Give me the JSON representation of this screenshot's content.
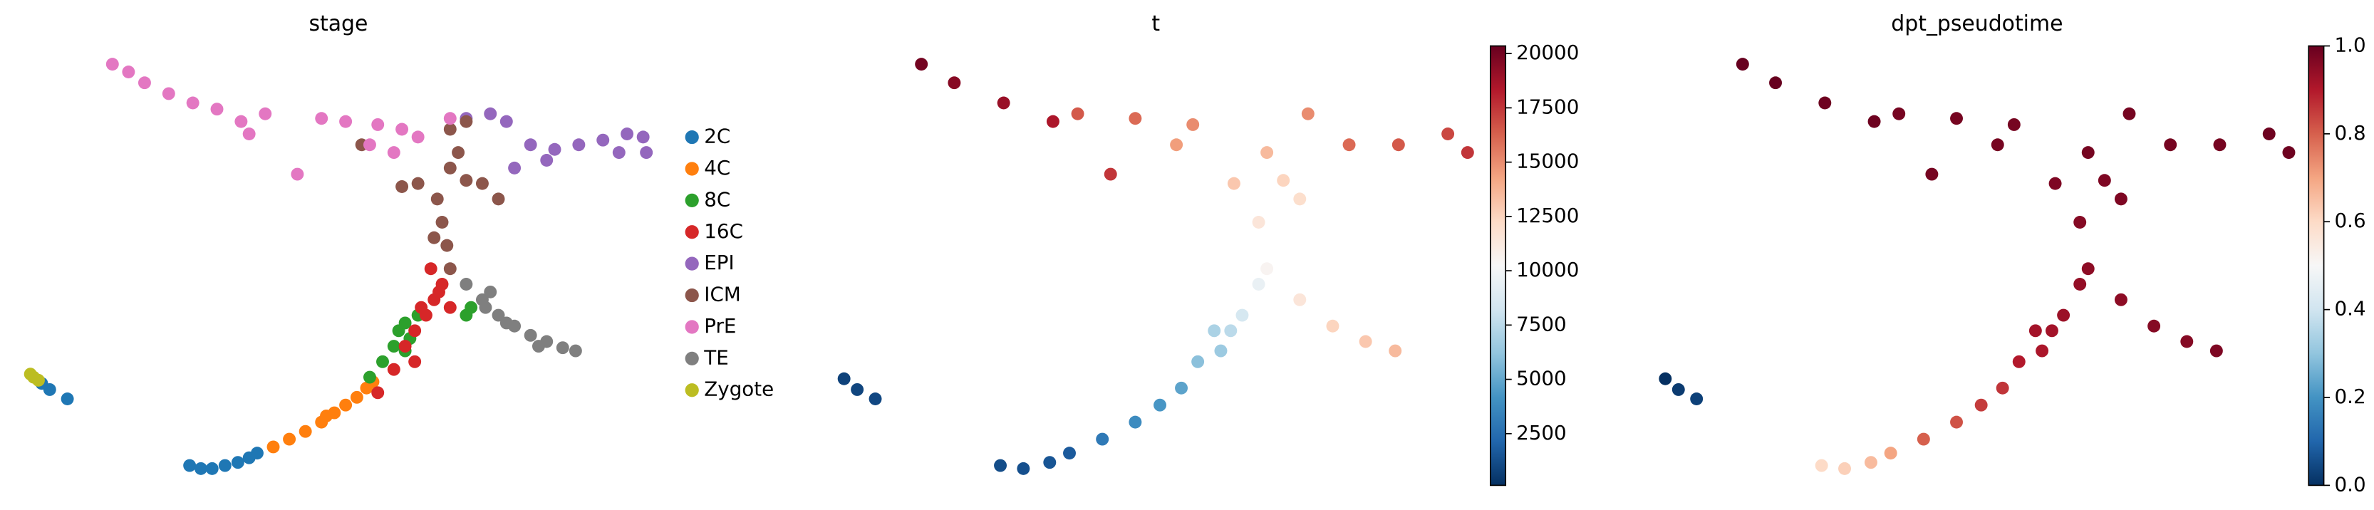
{
  "chart_data": [
    {
      "type": "scatter",
      "title": "stage",
      "series": [
        {
          "name": "2C",
          "color": "#1f77b4",
          "x": [
            128,
            135,
            142,
            150,
            158,
            165,
            170,
            36,
            41,
            52
          ],
          "y": [
            18,
            16,
            16,
            18,
            20,
            23,
            26,
            71,
            67,
            61
          ]
        },
        {
          "name": "4C",
          "color": "#ff7f0e",
          "x": [
            180,
            190,
            200,
            210,
            213,
            218,
            225,
            232,
            238,
            242
          ],
          "y": [
            30,
            35,
            40,
            46,
            50,
            52,
            57,
            62,
            68,
            72
          ]
        },
        {
          "name": "8C",
          "color": "#2ca02c",
          "x": [
            240,
            248,
            255,
            258,
            262,
            265,
            262,
            300,
            303,
            270
          ],
          "y": [
            75,
            85,
            95,
            105,
            110,
            100,
            92,
            115,
            120,
            115
          ]
        },
        {
          "name": "16C",
          "color": "#d62728",
          "x": [
            245,
            255,
            262,
            268,
            275,
            280,
            285,
            278,
            268,
            290,
            283,
            272
          ],
          "y": [
            65,
            80,
            95,
            105,
            115,
            125,
            135,
            145,
            85,
            120,
            130,
            120
          ]
        },
        {
          "name": "EPI",
          "color": "#9467bd",
          "x": [
            300,
            315,
            325,
            340,
            355,
            370,
            385,
            400,
            410,
            412,
            395,
            350,
            330
          ],
          "y": [
            242,
            245,
            240,
            225,
            222,
            225,
            228,
            232,
            230,
            220,
            220,
            215,
            210
          ]
        },
        {
          "name": "ICM",
          "color": "#8c564b",
          "x": [
            290,
            288,
            285,
            282,
            270,
            260,
            300,
            310,
            295,
            290,
            300,
            290,
            280,
            235,
            320
          ],
          "y": [
            145,
            160,
            175,
            190,
            200,
            198,
            202,
            200,
            220,
            235,
            240,
            210,
            165,
            225,
            190
          ]
        },
        {
          "name": "PrE",
          "color": "#e377c2",
          "x": [
            80,
            90,
            100,
            115,
            130,
            145,
            160,
            175,
            165,
            210,
            225,
            245,
            260,
            270,
            255,
            240,
            195,
            290
          ],
          "y": [
            277,
            272,
            265,
            258,
            252,
            248,
            240,
            245,
            232,
            242,
            240,
            238,
            235,
            230,
            220,
            225,
            206,
            242
          ]
        },
        {
          "name": "TE",
          "color": "#7f7f7f",
          "x": [
            300,
            310,
            320,
            330,
            340,
            350,
            360,
            368,
            315,
            325,
            345,
            312
          ],
          "y": [
            135,
            125,
            115,
            108,
            102,
            98,
            94,
            92,
            130,
            110,
            95,
            120
          ]
        },
        {
          "name": "Zygote",
          "color": "#bcbd22",
          "x": [
            29,
            31,
            34
          ],
          "y": [
            77,
            75,
            73
          ]
        }
      ]
    },
    {
      "type": "scatter",
      "title": "t",
      "clim": [
        120,
        20350
      ],
      "cticks": [
        2500,
        5000,
        7500,
        10000,
        12500,
        15000,
        17500,
        20000
      ],
      "x": [
        33,
        41,
        52,
        128,
        142,
        158,
        170,
        190,
        210,
        225,
        238,
        248,
        258,
        268,
        262,
        275,
        285,
        310,
        330,
        350,
        368,
        290,
        285,
        270,
        300,
        290,
        310,
        235,
        315,
        340,
        370,
        400,
        412,
        80,
        100,
        130,
        160,
        175,
        210,
        245,
        195
      ],
      "y": [
        74,
        67,
        61,
        18,
        16,
        20,
        26,
        35,
        46,
        57,
        68,
        85,
        105,
        105,
        92,
        115,
        135,
        125,
        108,
        98,
        92,
        145,
        175,
        200,
        202,
        220,
        190,
        225,
        245,
        225,
        225,
        232,
        220,
        277,
        265,
        252,
        240,
        245,
        242,
        238,
        206
      ],
      "values": [
        800,
        900,
        1000,
        1200,
        1300,
        1500,
        1700,
        3000,
        3800,
        4300,
        4800,
        6000,
        7000,
        7500,
        6500,
        8500,
        9500,
        11500,
        12500,
        13000,
        13500,
        10500,
        11500,
        13000,
        12500,
        13500,
        12000,
        14500,
        15000,
        16000,
        16500,
        17000,
        17500,
        20000,
        19500,
        19000,
        18500,
        16500,
        16000,
        15000,
        17500
      ]
    },
    {
      "type": "scatter",
      "title": "dpt_pseudotime",
      "clim": [
        0,
        1
      ],
      "cticks": [
        {
          "value": 0,
          "label": "0.0"
        },
        {
          "value": 0.2,
          "label": "0.2"
        },
        {
          "value": 0.4,
          "label": "0.4"
        },
        {
          "value": 0.6,
          "label": "0.6"
        },
        {
          "value": 0.8,
          "label": "0.8"
        },
        {
          "value": 1,
          "label": "1.0"
        }
      ],
      "x": [
        33,
        41,
        52,
        128,
        142,
        158,
        170,
        190,
        210,
        225,
        238,
        248,
        258,
        268,
        262,
        275,
        285,
        310,
        330,
        350,
        368,
        290,
        285,
        270,
        300,
        290,
        310,
        235,
        315,
        340,
        370,
        400,
        412,
        80,
        100,
        130,
        160,
        175,
        210,
        245,
        195
      ],
      "y": [
        74,
        67,
        61,
        18,
        16,
        20,
        26,
        35,
        46,
        57,
        68,
        85,
        105,
        105,
        92,
        115,
        135,
        125,
        108,
        98,
        92,
        145,
        175,
        200,
        202,
        220,
        190,
        225,
        245,
        225,
        225,
        232,
        220,
        277,
        265,
        252,
        240,
        245,
        242,
        238,
        206
      ],
      "values": [
        0.0,
        0.02,
        0.03,
        0.6,
        0.62,
        0.66,
        0.7,
        0.8,
        0.82,
        0.85,
        0.86,
        0.9,
        0.92,
        0.92,
        0.91,
        0.93,
        0.94,
        0.95,
        0.96,
        0.96,
        0.97,
        0.95,
        0.96,
        0.97,
        0.97,
        0.98,
        0.97,
        0.98,
        0.98,
        0.98,
        0.98,
        0.99,
        0.99,
        1.0,
        1.0,
        0.99,
        0.99,
        0.98,
        0.98,
        0.98,
        0.98
      ]
    }
  ]
}
